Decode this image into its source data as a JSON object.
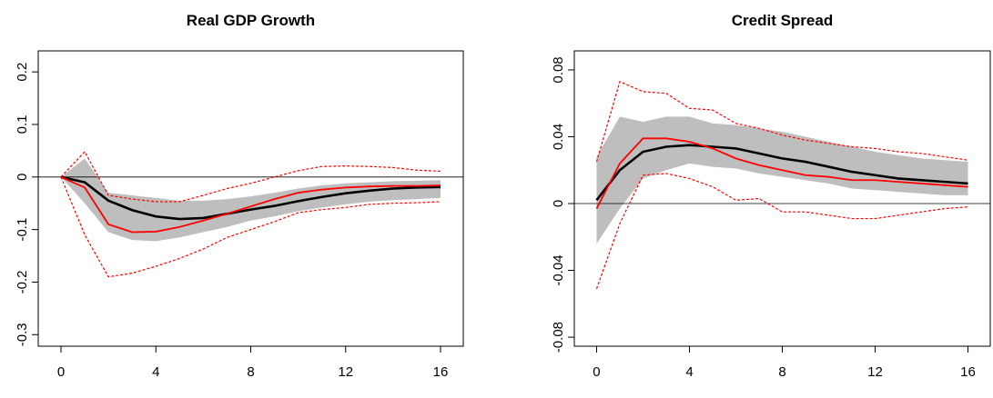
{
  "chart_data": [
    {
      "type": "line",
      "title": "Real GDP Growth",
      "x": [
        0,
        1,
        2,
        3,
        4,
        5,
        6,
        7,
        8,
        9,
        10,
        11,
        12,
        13,
        14,
        15,
        16
      ],
      "xlim": [
        -0.96,
        16.96
      ],
      "ylim": [
        -0.322,
        0.24
      ],
      "xticks": [
        0,
        4,
        8,
        12,
        16
      ],
      "yticks": [
        0.2,
        0.1,
        0,
        -0.1,
        -0.2,
        -0.3
      ],
      "hline": 0,
      "band": {
        "color": "#bebebe",
        "upper": [
          0,
          0.035,
          -0.03,
          -0.035,
          -0.04,
          -0.045,
          -0.045,
          -0.042,
          -0.037,
          -0.03,
          -0.022,
          -0.016,
          -0.012,
          -0.01,
          -0.008,
          -0.007,
          -0.006
        ],
        "lower": [
          0,
          -0.05,
          -0.105,
          -0.12,
          -0.122,
          -0.115,
          -0.105,
          -0.095,
          -0.083,
          -0.075,
          -0.065,
          -0.058,
          -0.052,
          -0.047,
          -0.044,
          -0.042,
          -0.04
        ]
      },
      "series": [
        {
          "color": "#ff0000",
          "style": "dashed",
          "values": [
            0,
            0.048,
            -0.035,
            -0.042,
            -0.047,
            -0.047,
            -0.035,
            -0.022,
            -0.012,
            0,
            0.012,
            0.02,
            0.021,
            0.02,
            0.018,
            0.013,
            0.011
          ]
        },
        {
          "color": "#ff0000",
          "style": "dashed",
          "values": [
            0,
            -0.11,
            -0.19,
            -0.183,
            -0.17,
            -0.155,
            -0.137,
            -0.115,
            -0.1,
            -0.085,
            -0.068,
            -0.062,
            -0.058,
            -0.052,
            -0.05,
            -0.049,
            -0.047
          ]
        },
        {
          "color": "#000000",
          "style": "solid",
          "values": [
            0,
            -0.01,
            -0.045,
            -0.063,
            -0.075,
            -0.08,
            -0.078,
            -0.07,
            -0.062,
            -0.055,
            -0.046,
            -0.038,
            -0.031,
            -0.026,
            -0.022,
            -0.02,
            -0.019
          ]
        },
        {
          "color": "#ff0000",
          "style": "solid",
          "values": [
            0,
            -0.02,
            -0.09,
            -0.105,
            -0.104,
            -0.095,
            -0.083,
            -0.07,
            -0.056,
            -0.042,
            -0.03,
            -0.024,
            -0.02,
            -0.018,
            -0.017,
            -0.017,
            -0.016
          ]
        }
      ]
    },
    {
      "type": "line",
      "title": "Credit Spread",
      "x": [
        0,
        1,
        2,
        3,
        4,
        5,
        6,
        7,
        8,
        9,
        10,
        11,
        12,
        13,
        14,
        15,
        16
      ],
      "xlim": [
        -0.96,
        16.96
      ],
      "ylim": [
        -0.0854,
        0.0914
      ],
      "xticks": [
        0,
        4,
        8,
        12,
        16
      ],
      "yticks": [
        0.08,
        0.04,
        0,
        -0.04,
        -0.08
      ],
      "hline": 0,
      "band": {
        "color": "#bebebe",
        "upper": [
          0.028,
          0.052,
          0.049,
          0.052,
          0.052,
          0.048,
          0.047,
          0.045,
          0.043,
          0.04,
          0.037,
          0.034,
          0.031,
          0.029,
          0.027,
          0.026,
          0.025
        ],
        "lower": [
          -0.024,
          -0.003,
          0.015,
          0.02,
          0.024,
          0.022,
          0.021,
          0.018,
          0.016,
          0.014,
          0.012,
          0.009,
          0.008,
          0.007,
          0.006,
          0.005,
          0.005
        ]
      },
      "series": [
        {
          "color": "#ff0000",
          "style": "dashed",
          "values": [
            0.025,
            0.073,
            0.067,
            0.066,
            0.057,
            0.056,
            0.048,
            0.045,
            0.041,
            0.038,
            0.036,
            0.034,
            0.033,
            0.031,
            0.03,
            0.028,
            0.026
          ]
        },
        {
          "color": "#ff0000",
          "style": "dashed",
          "values": [
            -0.051,
            -0.012,
            0.017,
            0.018,
            0.015,
            0.01,
            0.002,
            0.003,
            -0.005,
            -0.005,
            -0.007,
            -0.009,
            -0.009,
            -0.007,
            -0.005,
            -0.003,
            -0.002
          ]
        },
        {
          "color": "#000000",
          "style": "solid",
          "values": [
            0.002,
            0.02,
            0.031,
            0.034,
            0.035,
            0.034,
            0.033,
            0.03,
            0.027,
            0.025,
            0.022,
            0.019,
            0.017,
            0.015,
            0.014,
            0.013,
            0.012
          ]
        },
        {
          "color": "#ff0000",
          "style": "solid",
          "values": [
            -0.003,
            0.024,
            0.039,
            0.039,
            0.037,
            0.033,
            0.027,
            0.023,
            0.02,
            0.017,
            0.016,
            0.014,
            0.014,
            0.013,
            0.012,
            0.011,
            0.01
          ]
        }
      ]
    }
  ]
}
